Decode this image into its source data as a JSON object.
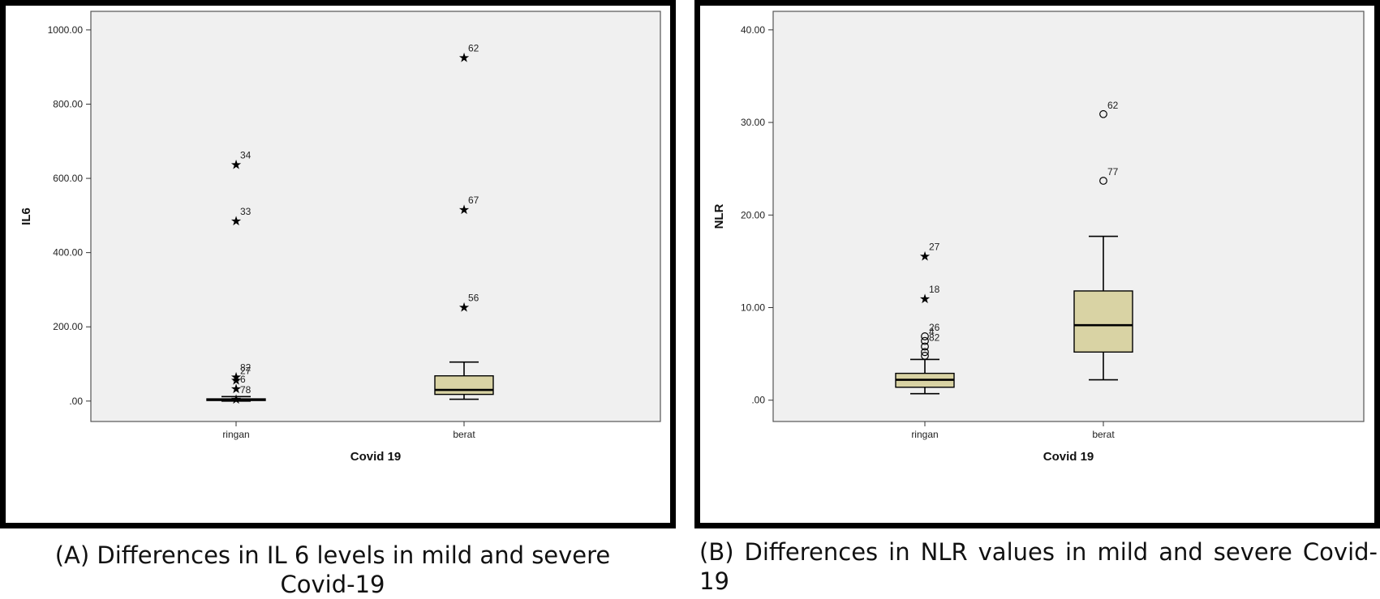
{
  "chart_data": [
    {
      "type": "boxplot",
      "ylabel": "IL6",
      "xlabel": "Covid 19",
      "ylim": [
        -55,
        1050
      ],
      "yticks": [
        0,
        200,
        400,
        600,
        800,
        1000
      ],
      "ytick_labels": [
        ".00",
        "200.00",
        "400.00",
        "600.00",
        "800.00",
        "1000.00"
      ],
      "categories": [
        "ringan",
        "berat"
      ],
      "boxes": [
        {
          "category": "ringan",
          "whisker_low": 0,
          "q1": 1.5,
          "median": 3.5,
          "q3": 6,
          "whisker_high": 12,
          "outliers": [
            {
              "id": "34",
              "value": 638,
              "marker": "star"
            },
            {
              "id": "33",
              "value": 487,
              "marker": "star"
            },
            {
              "id": "82",
              "value": 66,
              "marker": "star"
            },
            {
              "id": "27",
              "value": 57,
              "marker": "star"
            },
            {
              "id": "6",
              "value": 35,
              "marker": "star"
            },
            {
              "id": "78",
              "value": 6,
              "marker": "star"
            }
          ]
        },
        {
          "category": "berat",
          "whisker_low": 5,
          "q1": 18,
          "median": 30,
          "q3": 68,
          "whisker_high": 105,
          "outliers": [
            {
              "id": "62",
              "value": 927,
              "marker": "star"
            },
            {
              "id": "67",
              "value": 517,
              "marker": "star"
            },
            {
              "id": "56",
              "value": 254,
              "marker": "star"
            }
          ]
        }
      ],
      "colors": {
        "box_fill": "#d9d3a4",
        "plot_bg": "#f0f0f0"
      }
    },
    {
      "type": "boxplot",
      "ylabel": "NLR",
      "xlabel": "Covid 19",
      "ylim": [
        -2.3,
        42
      ],
      "yticks": [
        0,
        10,
        20,
        30,
        40
      ],
      "ytick_labels": [
        ".00",
        "10.00",
        "20.00",
        "30.00",
        "40.00"
      ],
      "categories": [
        "ringan",
        "berat"
      ],
      "boxes": [
        {
          "category": "ringan",
          "whisker_low": 0.7,
          "q1": 1.4,
          "median": 2.2,
          "q3": 2.9,
          "whisker_high": 4.4,
          "outliers": [
            {
              "id": "27",
              "value": 15.6,
              "marker": "star"
            },
            {
              "id": "18",
              "value": 11.0,
              "marker": "star"
            },
            {
              "id": "26",
              "value": 6.9,
              "marker": "circle"
            },
            {
              "id": "4",
              "value": 6.4,
              "marker": "circle"
            },
            {
              "id": "82",
              "value": 5.8,
              "marker": "circle"
            },
            {
              "id": "",
              "value": 5.2,
              "marker": "circle"
            },
            {
              "id": "",
              "value": 4.8,
              "marker": "circle"
            }
          ]
        },
        {
          "category": "berat",
          "whisker_low": 2.2,
          "q1": 5.2,
          "median": 8.1,
          "q3": 11.8,
          "whisker_high": 17.7,
          "outliers": [
            {
              "id": "62",
              "value": 30.9,
              "marker": "circle"
            },
            {
              "id": "77",
              "value": 23.7,
              "marker": "circle"
            }
          ]
        }
      ],
      "colors": {
        "box_fill": "#d9d3a4",
        "plot_bg": "#f0f0f0"
      }
    }
  ],
  "captions": {
    "a": "(A) Differences in IL 6 levels in mild and severe Covid-19",
    "b": "(B) Differences in NLR values in mild and severe Covid-19"
  }
}
